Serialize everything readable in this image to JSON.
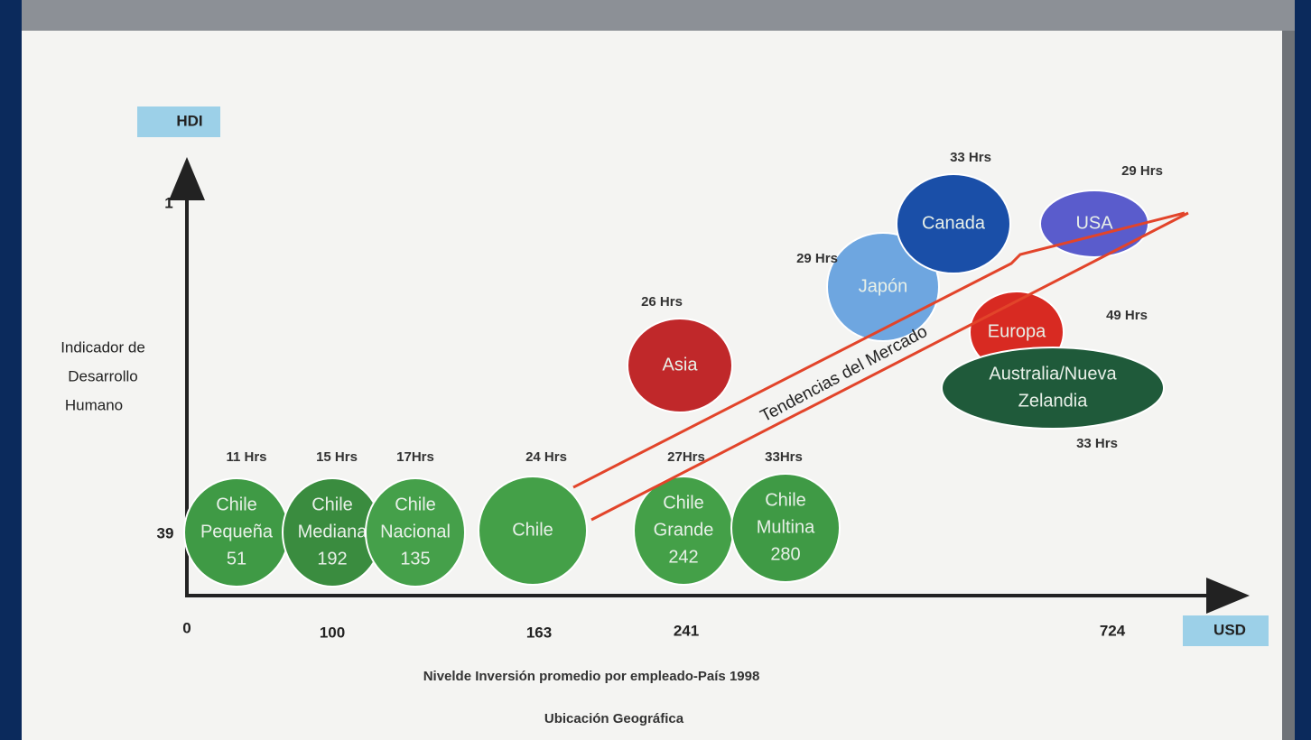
{
  "axes": {
    "y_label": "HDI",
    "y_title": [
      "Indicador de",
      "Desarrollo",
      "Humano"
    ],
    "y_ticks": [
      "1",
      "39"
    ],
    "x_ticks": [
      "0",
      "100",
      "163",
      "241",
      "724"
    ],
    "x_label": "USD",
    "x_title": "Nivelde Inversión promedio por empleado-País 1998",
    "x_subtitle": "Ubicación Geográfica"
  },
  "trend": "Tendencias del Mercado",
  "bubbles": [
    {
      "lines": [
        "Chile",
        "Pequeña",
        "51"
      ],
      "hours": "11 Hrs"
    },
    {
      "lines": [
        "Chile",
        "Mediana",
        "192"
      ],
      "hours": "15 Hrs"
    },
    {
      "lines": [
        "Chile",
        "Nacional",
        "135"
      ],
      "hours": "17Hrs"
    },
    {
      "lines": [
        "Chile"
      ],
      "hours": "24 Hrs"
    },
    {
      "lines": [
        "Chile",
        "Grande",
        "242"
      ],
      "hours": "27Hrs"
    },
    {
      "lines": [
        "Chile",
        "Multina",
        "280"
      ],
      "hours": "33Hrs"
    },
    {
      "lines": [
        "Asia"
      ],
      "hours": "26 Hrs"
    },
    {
      "lines": [
        "Japón"
      ],
      "hours": "29 Hrs"
    },
    {
      "lines": [
        "Canada"
      ],
      "hours": "33 Hrs"
    },
    {
      "lines": [
        "USA"
      ],
      "hours": "29 Hrs"
    },
    {
      "lines": [
        "Europa"
      ],
      "hours": "49 Hrs"
    },
    {
      "lines": [
        "Australia/Nueva",
        "Zelandia"
      ],
      "hours": "33 Hrs"
    }
  ]
}
